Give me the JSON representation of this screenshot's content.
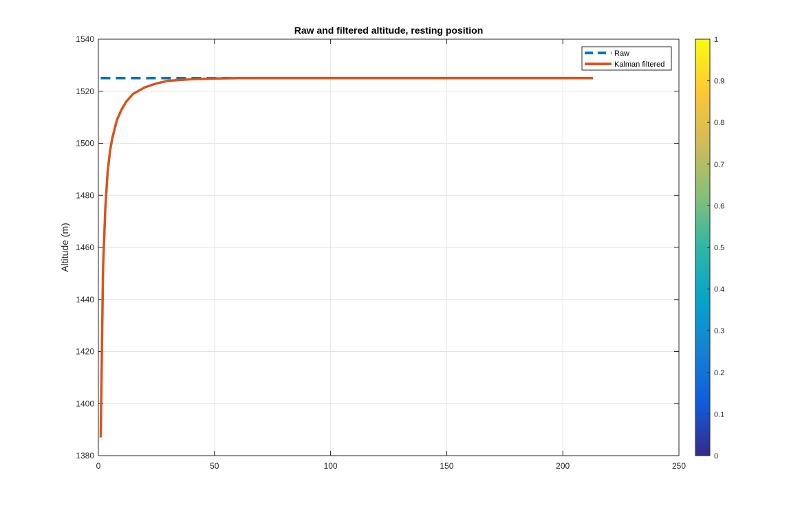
{
  "chart_data": {
    "type": "line",
    "title": "Raw and filtered altitude, resting position",
    "xlabel": "",
    "ylabel": "Altitude (m)",
    "xlim": [
      0,
      250
    ],
    "ylim": [
      1380,
      1540
    ],
    "xticks": [
      0,
      50,
      100,
      150,
      200,
      250
    ],
    "yticks": [
      1380,
      1400,
      1420,
      1440,
      1460,
      1480,
      1500,
      1520,
      1540
    ],
    "grid": true,
    "legend_position": "top-right",
    "series": [
      {
        "name": "Raw",
        "style": "dashed",
        "color": "#0072BD",
        "x": [
          1,
          87
        ],
        "y": [
          1525,
          1525
        ]
      },
      {
        "name": "Kalman filtered",
        "style": "solid",
        "color": "#D95319",
        "x": [
          1,
          2,
          3,
          4,
          5,
          6,
          8,
          10,
          12,
          15,
          20,
          25,
          30,
          40,
          50,
          60,
          80,
          100,
          150,
          213
        ],
        "y": [
          1387,
          1452,
          1475,
          1489,
          1497,
          1502,
          1509,
          1513,
          1516,
          1519,
          1521.5,
          1523,
          1524,
          1524.6,
          1524.9,
          1525,
          1525,
          1525,
          1525,
          1525
        ]
      }
    ],
    "colorbar": {
      "ticks": [
        "0",
        "0.1",
        "0.2",
        "0.3",
        "0.4",
        "0.5",
        "0.6",
        "0.7",
        "0.8",
        "0.9",
        "1"
      ],
      "colormap": "parula",
      "colors": [
        "#352A87",
        "#0F5CDD",
        "#1481D6",
        "#06A4CA",
        "#2EB7A4",
        "#87BF77",
        "#D1BB59",
        "#FEC832",
        "#F9FB0E"
      ]
    }
  }
}
